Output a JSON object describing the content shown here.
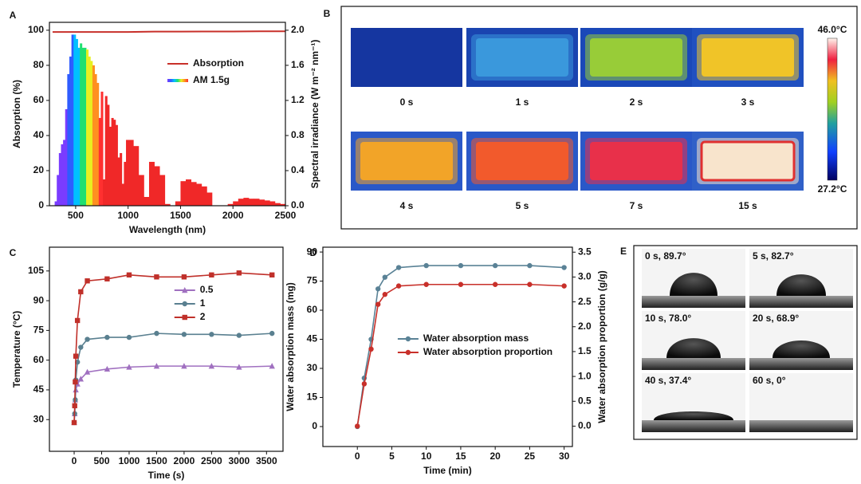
{
  "chart_data": [
    {
      "panel": "A",
      "type": "line",
      "xlabel": "Wavelength (nm)",
      "ylabel": "Absorption (%)",
      "y2label": "Spectral irradiance (W m⁻² nm⁻¹)",
      "xlim": [
        250,
        2500
      ],
      "xticks": [
        500,
        1000,
        1500,
        2000,
        2500
      ],
      "ylim": [
        0,
        104.5
      ],
      "yticks": [
        0,
        20,
        40,
        60,
        80,
        100
      ],
      "y2lim": [
        0,
        2.09
      ],
      "y2ticks": [
        {
          "value": 0,
          "label": "0.0"
        },
        0.4,
        0.8,
        1.2,
        1.6,
        {
          "value": 2,
          "label": "2.0"
        }
      ],
      "legend": "upper right",
      "series": [
        {
          "name": "Absorption",
          "type": "line",
          "color": "#c8302a",
          "x": [
            280,
            500,
            750,
            1000,
            1250,
            1500,
            1750,
            2000,
            2250,
            2500
          ],
          "values": [
            99,
            99,
            99,
            99,
            99.2,
            99.2,
            99.3,
            99.3,
            99.4,
            99.4
          ]
        },
        {
          "name": "AM 1.5g",
          "type": "area",
          "axis": "y2",
          "color": "#f02828",
          "gradient": [
            "#7a3cff",
            "#2f5cff",
            "#00c0ff",
            "#20e070",
            "#e8f020",
            "#ff9020",
            "#ff3030"
          ],
          "x": [
            280,
            300,
            320,
            340,
            360,
            380,
            400,
            420,
            440,
            460,
            480,
            500,
            520,
            540,
            560,
            580,
            600,
            620,
            640,
            660,
            680,
            700,
            720,
            740,
            760,
            780,
            800,
            820,
            840,
            860,
            880,
            900,
            920,
            940,
            960,
            980,
            1000,
            1050,
            1100,
            1150,
            1200,
            1250,
            1300,
            1350,
            1400,
            1450,
            1500,
            1550,
            1600,
            1650,
            1700,
            1750,
            1800,
            1850,
            1900,
            1950,
            2000,
            2050,
            2100,
            2150,
            2200,
            2250,
            2300,
            2350,
            2400,
            2450,
            2500
          ],
          "values": [
            0,
            0.05,
            0.35,
            0.6,
            0.7,
            0.75,
            1.1,
            1.5,
            1.7,
            1.95,
            1.95,
            1.9,
            1.8,
            1.85,
            1.8,
            1.8,
            1.78,
            1.7,
            1.65,
            1.6,
            1.5,
            1.4,
            1.0,
            1.3,
            0.3,
            1.25,
            1.15,
            0.9,
            1.0,
            0.98,
            0.92,
            0.55,
            0.6,
            0.25,
            0.5,
            0.75,
            0.75,
            0.68,
            0.35,
            0.1,
            0.5,
            0.45,
            0.35,
            0.02,
            0,
            0.05,
            0.28,
            0.3,
            0.27,
            0.25,
            0.22,
            0.15,
            0,
            0,
            0,
            0.02,
            0.05,
            0.08,
            0.09,
            0.08,
            0.08,
            0.07,
            0.06,
            0.05,
            0.03,
            0.02,
            0.01
          ]
        }
      ]
    },
    {
      "panel": "C",
      "type": "line",
      "xlabel": "Time (s)",
      "ylabel": "Temperature (°C)",
      "xlim": [
        -450,
        3800
      ],
      "xticks": [
        0,
        500,
        1000,
        1500,
        2000,
        2500,
        3000,
        3500
      ],
      "ylim": [
        14,
        117
      ],
      "yticks": [
        30,
        45,
        60,
        75,
        90,
        105
      ],
      "legend": "center right",
      "series": [
        {
          "name": "0.5",
          "type": "line",
          "marker": "triangle",
          "color": "#a070c0",
          "x": [
            0,
            10,
            20,
            30,
            60,
            120,
            240,
            600,
            1000,
            1500,
            2000,
            2500,
            3000,
            3600
          ],
          "values": [
            28.5,
            33,
            40,
            45,
            48,
            50.5,
            54,
            55.5,
            56.5,
            57,
            57,
            57,
            56.5,
            57
          ]
        },
        {
          "name": "1",
          "type": "line",
          "marker": "circle",
          "color": "#5a8090",
          "x": [
            0,
            10,
            20,
            30,
            60,
            120,
            240,
            600,
            1000,
            1500,
            2000,
            2500,
            3000,
            3600
          ],
          "values": [
            28.5,
            33,
            40,
            50,
            59,
            66.5,
            70.5,
            71.5,
            71.5,
            73.5,
            73,
            73,
            72.5,
            73.5
          ]
        },
        {
          "name": "2",
          "type": "line",
          "marker": "square",
          "color": "#c0302a",
          "x": [
            0,
            10,
            20,
            30,
            60,
            120,
            240,
            600,
            1000,
            1500,
            2000,
            2500,
            3000,
            3600
          ],
          "values": [
            28.5,
            37,
            49,
            62,
            80,
            94.5,
            100,
            101,
            103,
            102,
            102,
            103,
            104,
            103
          ]
        }
      ]
    },
    {
      "panel": "D",
      "type": "line",
      "xlabel": "Time (min)",
      "ylabel": "Water absorption mass (mg)",
      "y2label": "Water absorption proportion (g/g)",
      "xlim": [
        -5,
        31.2
      ],
      "xticks": [
        0,
        5,
        10,
        15,
        20,
        25,
        30
      ],
      "ylim": [
        -10.3,
        92.5
      ],
      "yticks": [
        0,
        15,
        30,
        45,
        60,
        75,
        90
      ],
      "y2lim": [
        -0.41,
        3.6
      ],
      "y2ticks": [
        {
          "value": 0,
          "label": "0.0"
        },
        0.5,
        {
          "value": 1,
          "label": "1.0"
        },
        1.5,
        {
          "value": 2,
          "label": "2.0"
        },
        2.5,
        {
          "value": 3,
          "label": "3.0"
        },
        3.5
      ],
      "legend": "center",
      "series": [
        {
          "name": "Water absorption mass",
          "type": "line",
          "marker": "circle",
          "color": "#5a8296",
          "x": [
            0,
            1,
            2,
            3,
            4,
            6,
            10,
            15,
            20,
            25,
            30
          ],
          "values": [
            0,
            25,
            45,
            71,
            77,
            82,
            83,
            83,
            83,
            83,
            82
          ]
        },
        {
          "name": "Water absorption proportion",
          "type": "line",
          "marker": "circle",
          "axis": "y2",
          "color": "#c8302a",
          "x": [
            0,
            1,
            2,
            3,
            4,
            6,
            10,
            15,
            20,
            25,
            30
          ],
          "values": [
            0,
            0.85,
            1.55,
            2.45,
            2.65,
            2.82,
            2.85,
            2.85,
            2.85,
            2.85,
            2.82
          ]
        }
      ]
    }
  ],
  "thermal_panel": {
    "panel": "B",
    "colorbar": {
      "max_label": "46.0°C",
      "min_label": "27.2°C"
    },
    "frames": [
      {
        "label": "0 s",
        "background": "#1536a0",
        "color": "#1a3ea8"
      },
      {
        "label": "1 s",
        "background": "#1a44b0",
        "color": "#3a98dc"
      },
      {
        "label": "2 s",
        "background": "#1a48b8",
        "color": "#98cc38"
      },
      {
        "label": "3 s",
        "background": "#2050c0",
        "color": "#f0c428"
      },
      {
        "label": "4 s",
        "background": "#2a58c8",
        "color": "#f2a428"
      },
      {
        "label": "5 s",
        "background": "#2a58c8",
        "color": "#f25a2c"
      },
      {
        "label": "7 s",
        "background": "#2a58c8",
        "color": "#e8304a"
      },
      {
        "label": "15 s",
        "background": "#3060c8",
        "color": "#f8e4cc"
      }
    ]
  },
  "contact_angle_panel": {
    "panel": "E",
    "frames": [
      {
        "label": "0 s, 89.7°"
      },
      {
        "label": "5 s, 82.7°"
      },
      {
        "label": "10 s, 78.0°"
      },
      {
        "label": "20 s, 68.9°"
      },
      {
        "label": "40 s, 37.4°"
      },
      {
        "label": "60 s, 0°"
      }
    ]
  }
}
